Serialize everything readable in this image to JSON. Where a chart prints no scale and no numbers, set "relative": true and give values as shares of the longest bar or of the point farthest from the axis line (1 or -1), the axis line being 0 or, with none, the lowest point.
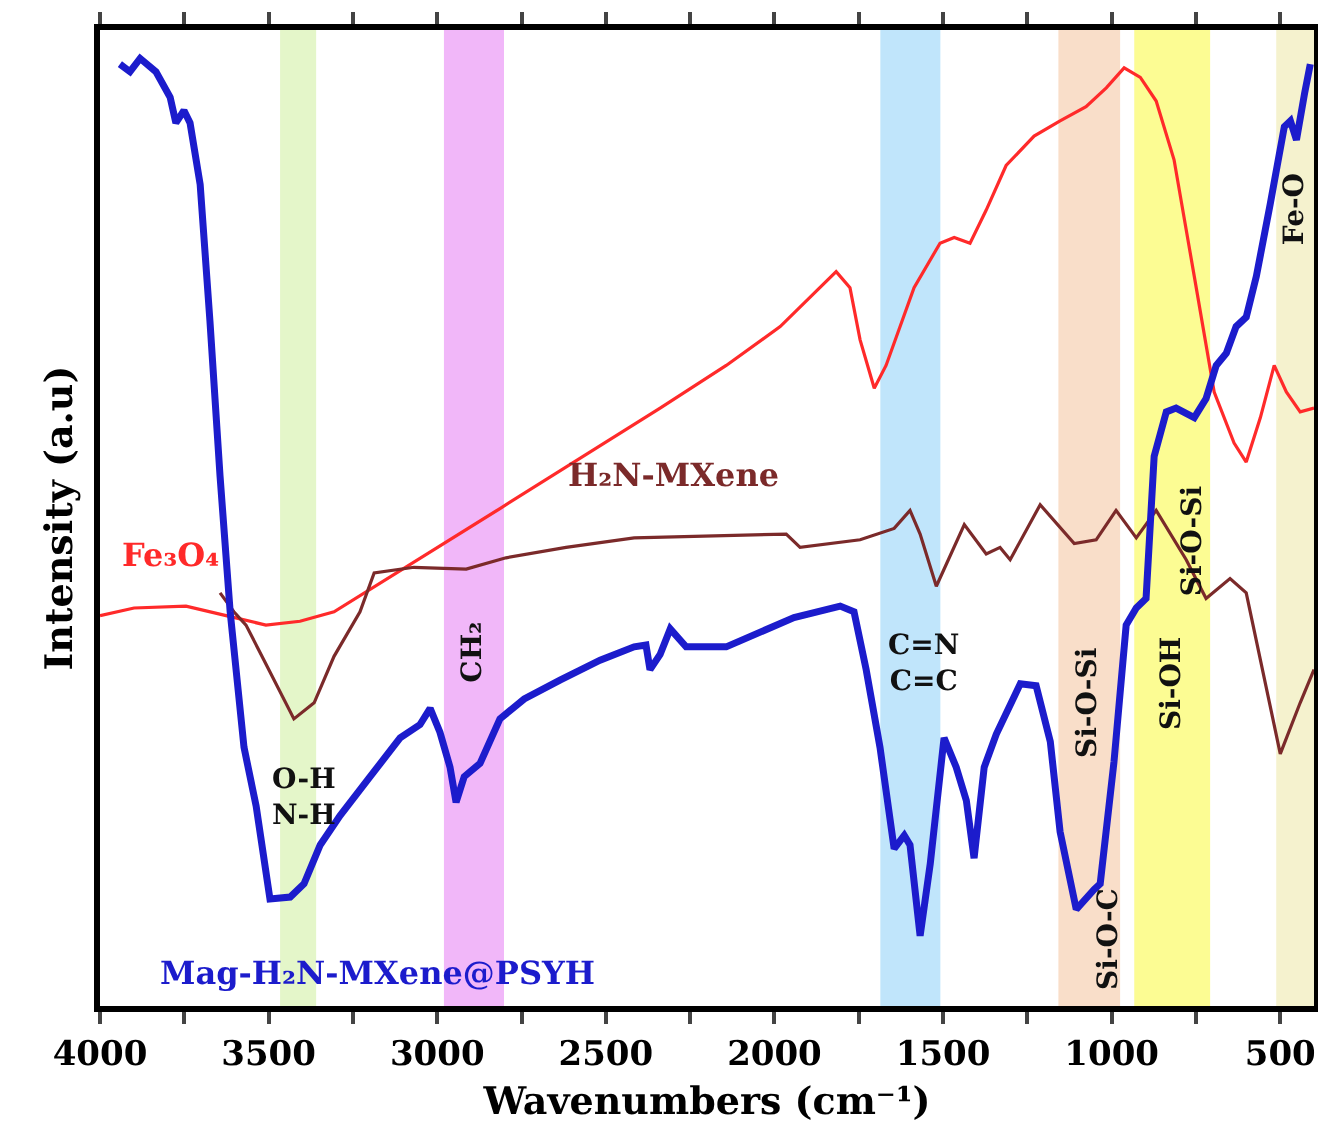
{
  "chart_data": {
    "type": "line",
    "relative": true,
    "xlabel": "Wavenumbers (cm⁻¹)",
    "ylabel": "Intensity (a.u)",
    "xlim": [
      4000,
      400
    ],
    "xticks": [
      4000,
      {
        "value": 3750,
        "label": null
      },
      3500,
      {
        "value": 3250,
        "label": null
      },
      3000,
      {
        "value": 2750,
        "label": null
      },
      2500,
      {
        "value": 2250,
        "label": null
      },
      2000,
      {
        "value": 1750,
        "label": null
      },
      1500,
      {
        "value": 1250,
        "label": null
      },
      1000,
      {
        "value": 750,
        "label": null
      },
      500
    ],
    "grid": false,
    "legend": false,
    "marker": "none",
    "line_style": "solid",
    "series": [
      {
        "name": "Fe₃O₄",
        "color": "#ff2a2a",
        "x": [
          4000,
          3899,
          3745,
          3626,
          3508,
          3407,
          3306,
          2814,
          2339,
          2143,
          1983,
          1817,
          1776,
          1746,
          1704,
          1669,
          1586,
          1509,
          1467,
          1420,
          1372,
          1313,
          1230,
          1153,
          1076,
          1016,
          963,
          915,
          868,
          815,
          755,
          696,
          637,
          601,
          559,
          518,
          482,
          441,
          400
        ],
        "values": [
          0.412,
          0.42,
          0.422,
          0.412,
          0.402,
          0.406,
          0.416,
          0.525,
          0.631,
          0.676,
          0.717,
          0.775,
          0.758,
          0.703,
          0.652,
          0.676,
          0.758,
          0.805,
          0.811,
          0.805,
          0.84,
          0.887,
          0.918,
          0.934,
          0.949,
          0.969,
          0.99,
          0.98,
          0.955,
          0.893,
          0.77,
          0.648,
          0.594,
          0.574,
          0.621,
          0.676,
          0.648,
          0.627,
          0.631
        ]
      },
      {
        "name": "H₂N-MXene",
        "color": "#7b2a2a",
        "x": [
          3644,
          3603,
          3567,
          3508,
          3425,
          3365,
          3306,
          3229,
          3187,
          3069,
          2914,
          2796,
          2618,
          2416,
          1965,
          1924,
          1746,
          1645,
          1598,
          1568,
          1520,
          1437,
          1372,
          1331,
          1301,
          1212,
          1111,
          1046,
          987,
          927,
          868,
          779,
          720,
          649,
          601,
          500,
          441,
          400
        ],
        "values": [
          0.436,
          0.416,
          0.402,
          0.361,
          0.303,
          0.32,
          0.369,
          0.416,
          0.457,
          0.463,
          0.461,
          0.473,
          0.484,
          0.494,
          0.498,
          0.484,
          0.492,
          0.504,
          0.523,
          0.498,
          0.443,
          0.508,
          0.477,
          0.484,
          0.471,
          0.529,
          0.488,
          0.492,
          0.523,
          0.494,
          0.523,
          0.471,
          0.43,
          0.451,
          0.436,
          0.266,
          0.32,
          0.355
        ]
      },
      {
        "name": "Mag-H₂N-MXene@PSYH",
        "color": "#1c1ccc",
        "x": [
          3941,
          3911,
          3881,
          3834,
          3792,
          3775,
          3751,
          3733,
          3703,
          3674,
          3644,
          3614,
          3573,
          3537,
          3496,
          3436,
          3395,
          3347,
          3288,
          3199,
          3110,
          3051,
          3021,
          2992,
          2962,
          2944,
          2920,
          2873,
          2814,
          2742,
          2636,
          2517,
          2416,
          2381,
          2369,
          2339,
          2309,
          2262,
          2143,
          1942,
          1805,
          1764,
          1728,
          1687,
          1645,
          1615,
          1598,
          1568,
          1538,
          1497,
          1461,
          1431,
          1408,
          1378,
          1342,
          1271,
          1224,
          1182,
          1153,
          1105,
          1052,
          1034,
          993,
          957,
          927,
          898,
          874,
          838,
          809,
          755,
          720,
          690,
          660,
          631,
          601,
          571,
          530,
          488,
          470,
          452,
          428,
          411
        ],
        "values": [
          0.994,
          0.986,
          1,
          0.986,
          0.959,
          0.932,
          0.945,
          0.932,
          0.867,
          0.723,
          0.559,
          0.416,
          0.273,
          0.211,
          0.113,
          0.115,
          0.129,
          0.17,
          0.201,
          0.242,
          0.283,
          0.297,
          0.314,
          0.289,
          0.252,
          0.215,
          0.242,
          0.256,
          0.303,
          0.324,
          0.344,
          0.365,
          0.379,
          0.381,
          0.355,
          0.371,
          0.398,
          0.379,
          0.379,
          0.41,
          0.422,
          0.416,
          0.355,
          0.273,
          0.166,
          0.18,
          0.17,
          0.074,
          0.15,
          0.283,
          0.252,
          0.217,
          0.156,
          0.252,
          0.287,
          0.34,
          0.338,
          0.279,
          0.184,
          0.102,
          0.123,
          0.129,
          0.258,
          0.402,
          0.42,
          0.43,
          0.58,
          0.627,
          0.631,
          0.621,
          0.641,
          0.676,
          0.689,
          0.717,
          0.727,
          0.77,
          0.846,
          0.928,
          0.934,
          0.914,
          0.963,
          0.994
        ]
      }
    ],
    "bands": [
      {
        "axis": "x",
        "from": 3466,
        "to": 3359,
        "color": "#dff5c0",
        "label": "O-H\nN-H"
      },
      {
        "axis": "x",
        "from": 2980,
        "to": 2802,
        "color": "#eeaaf8",
        "label": "CH₂"
      },
      {
        "axis": "x",
        "from": 1686,
        "to": 1508,
        "color": "#b5e0fa",
        "label": "C=N\nC=C"
      },
      {
        "axis": "x",
        "from": 1158,
        "to": 975,
        "color": "#f8d8c0",
        "label": "Si-O-Si"
      },
      {
        "axis": "x",
        "from": 933,
        "to": 708,
        "color": "#fbfb80",
        "label": "Si-OH"
      },
      {
        "axis": "x",
        "from": 512,
        "to": 400,
        "color": "#f3f0c5",
        "label": "Fe-O"
      }
    ],
    "annotations": [
      "Si-O-C",
      "Si-O-Si"
    ]
  }
}
